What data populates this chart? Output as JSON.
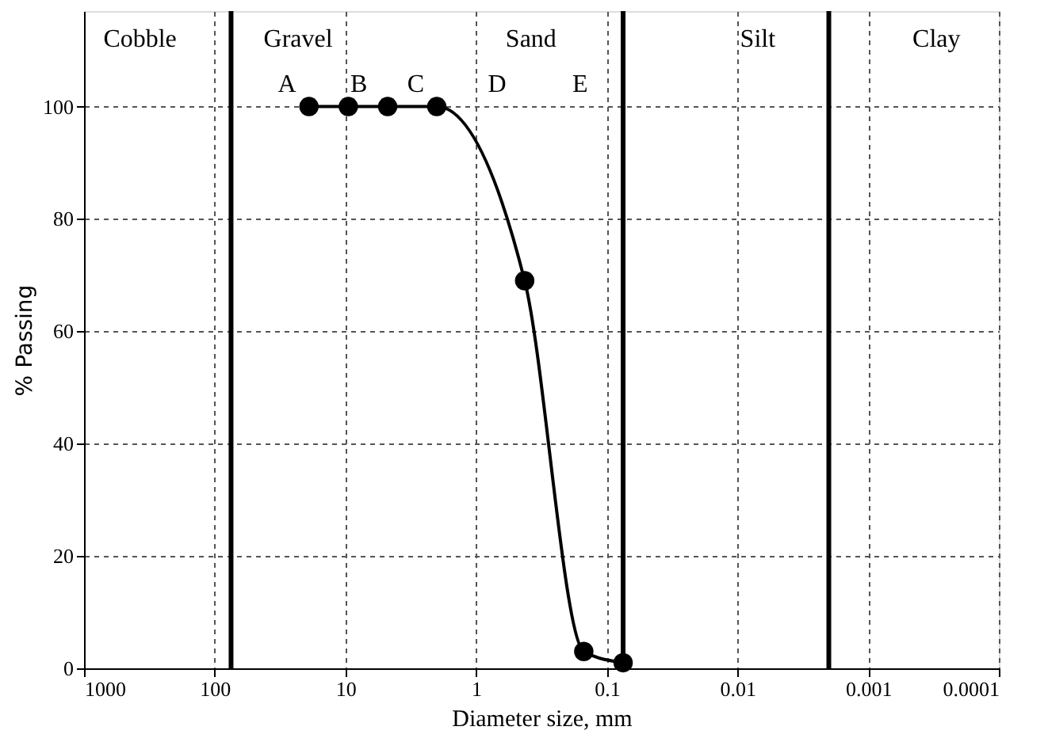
{
  "chart_data": {
    "type": "line",
    "xlabel": "Diameter size, mm",
    "ylabel": "% Passing",
    "x": [
      19,
      9.5,
      4.75,
      2,
      0.425,
      0.15,
      0.075
    ],
    "values": [
      100,
      100,
      100,
      100,
      69,
      3,
      1
    ],
    "color": "#000000",
    "marker": "circle",
    "line_style": "solid",
    "log": "x",
    "xlim": [
      1000,
      0.0001
    ],
    "xticks": [
      1000,
      100,
      10,
      1,
      0.1,
      0.01,
      0.001,
      0.0001
    ],
    "ylim": [
      0,
      117
    ],
    "yticks": [
      0,
      20,
      40,
      60,
      80,
      100
    ],
    "grid": true,
    "ref_lines": [
      {
        "axis": "x",
        "value": 75,
        "label": null
      },
      {
        "axis": "x",
        "value": 0.075,
        "label": null
      },
      {
        "axis": "x",
        "value": 0.002,
        "label": null
      }
    ],
    "annotations": [
      "Cobble",
      "Gravel",
      "Sand",
      "Silt",
      "Clay",
      "A",
      "B",
      "C",
      "D",
      "E"
    ]
  }
}
